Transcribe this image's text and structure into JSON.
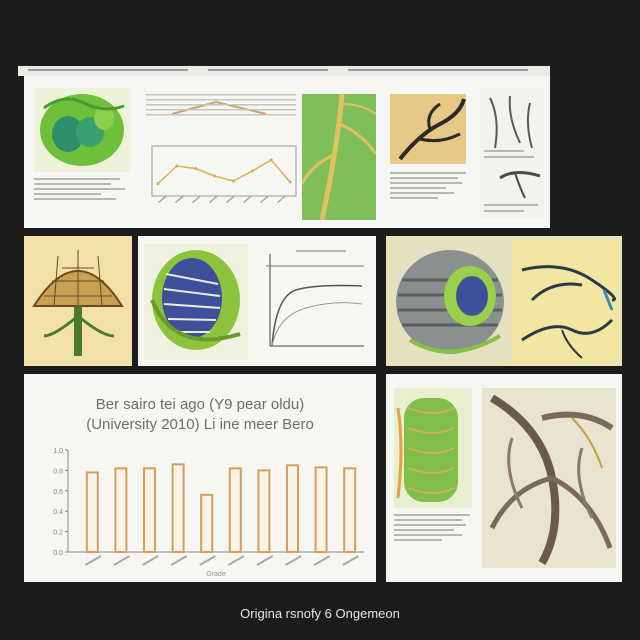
{
  "chart_title_line1": "Ber sairo tei ago (Y9 pear oldu)",
  "chart_title_line2": "(University 2010) Li ine meer Bero",
  "chart_yticks": [
    "1.0",
    "0.8",
    "0.6",
    "0.4",
    "0.2",
    "0.0"
  ],
  "chart_xlabel": "Grade",
  "footer_text": "Origina rsnofy 6 Ongemeon",
  "colors": {
    "background": "#1c1c1c",
    "panel": "#f6f6f2",
    "bar_stroke": "#d4a05c",
    "leaf_green": "#6fbf3a",
    "parchment": "#e8d79a"
  },
  "chart_data": {
    "type": "bar",
    "title": "Ber sairo tei ago (Y9 pear oldu) (University 2010) Li ine meer Bero",
    "categories": [
      "",
      "",
      "",
      "",
      "",
      "",
      "",
      "",
      "",
      ""
    ],
    "values": [
      0.78,
      0.82,
      0.82,
      0.86,
      0.56,
      0.82,
      0.8,
      0.85,
      0.83,
      0.82
    ],
    "ylim": [
      0,
      1.0
    ],
    "xlabel": "Grade",
    "grid": false
  },
  "line_chart": {
    "type": "line",
    "values": [
      0.25,
      0.6,
      0.55,
      0.4,
      0.3,
      0.5,
      0.72,
      0.28
    ]
  }
}
